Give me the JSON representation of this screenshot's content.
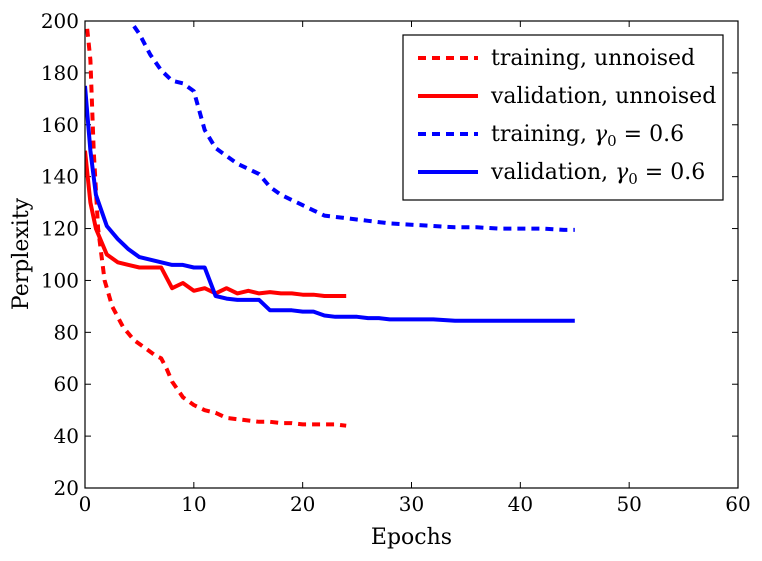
{
  "chart_data": {
    "type": "line",
    "title": "",
    "xlabel": "Epochs",
    "ylabel": "Perplexity",
    "xlim": [
      0,
      60
    ],
    "ylim": [
      20,
      200
    ],
    "xticks": [
      0,
      10,
      20,
      30,
      40,
      50,
      60
    ],
    "yticks": [
      20,
      40,
      60,
      80,
      100,
      120,
      140,
      160,
      180,
      200
    ],
    "grid": false,
    "legend_position": "top-right",
    "series": [
      {
        "name": "training, unnoised",
        "legend_text": "training, unnoised",
        "color": "#ff0000",
        "style": "dashed",
        "x": [
          0.2,
          0.5,
          0.8,
          1.2,
          1.8,
          2.5,
          3.5,
          4.5,
          5.5,
          6.5,
          7,
          7.5,
          8,
          9,
          10,
          11,
          12,
          13,
          14,
          15,
          16,
          17,
          18,
          19,
          20,
          21,
          22,
          23,
          24
        ],
        "y": [
          197,
          185,
          150,
          120,
          100,
          90,
          82,
          77,
          74,
          71,
          70,
          66,
          61,
          55,
          52,
          50,
          49,
          47,
          46.5,
          46,
          45.5,
          45.5,
          45,
          45,
          44.5,
          44.5,
          44.5,
          44.5,
          44
        ]
      },
      {
        "name": "validation, unnoised",
        "legend_text": "validation, unnoised",
        "color": "#ff0000",
        "style": "solid",
        "x": [
          0,
          0.5,
          1,
          2,
          3,
          4,
          5,
          6,
          7,
          8,
          9,
          10,
          11,
          12,
          13,
          14,
          15,
          16,
          17,
          18,
          19,
          20,
          21,
          22,
          23,
          24
        ],
        "y": [
          150,
          130,
          120,
          110,
          107,
          106,
          105,
          105,
          105,
          97,
          99,
          96,
          97,
          95,
          97,
          95,
          96,
          95,
          95.5,
          95,
          95,
          94.5,
          94.5,
          94,
          94,
          94
        ]
      },
      {
        "name": "training, γ0 = 0.6",
        "legend_text": "training, ",
        "legend_gamma": "γ",
        "legend_sub": "0",
        "legend_eq": " = 0.6",
        "color": "#0000ff",
        "style": "dashed",
        "x": [
          4.5,
          5,
          6,
          7,
          8,
          9,
          10,
          11,
          12,
          13,
          14,
          15,
          16,
          17,
          18,
          19,
          20,
          21,
          22,
          24,
          26,
          28,
          30,
          32,
          34,
          36,
          38,
          40,
          42,
          44,
          45
        ],
        "y": [
          198,
          195,
          187,
          181,
          177,
          176,
          173,
          158,
          151,
          148,
          145,
          143,
          141,
          136,
          133,
          131,
          129,
          127,
          125,
          124,
          123,
          122,
          121.5,
          121,
          120.5,
          120.5,
          120,
          120,
          120,
          119.5,
          119.5
        ]
      },
      {
        "name": "validation, γ0 = 0.6",
        "legend_text": "validation, ",
        "legend_gamma": "γ",
        "legend_sub": "0",
        "legend_eq": " = 0.6",
        "color": "#0000ff",
        "style": "solid",
        "x": [
          0,
          0.5,
          1,
          2,
          3,
          4,
          5,
          6,
          7,
          8,
          9,
          10,
          11,
          12,
          13,
          14,
          15,
          16,
          17,
          18,
          19,
          20,
          21,
          22,
          23,
          24,
          25,
          26,
          27,
          28,
          30,
          32,
          34,
          36,
          38,
          40,
          42,
          44,
          45
        ],
        "y": [
          175,
          150,
          133,
          121,
          116,
          112,
          109,
          108,
          107,
          106,
          106,
          105,
          105,
          94,
          93,
          92.5,
          92.5,
          92.5,
          88.5,
          88.5,
          88.5,
          88,
          88,
          86.5,
          86,
          86,
          86,
          85.5,
          85.5,
          85,
          85,
          85,
          84.5,
          84.5,
          84.5,
          84.5,
          84.5,
          84.5,
          84.5
        ]
      }
    ]
  }
}
